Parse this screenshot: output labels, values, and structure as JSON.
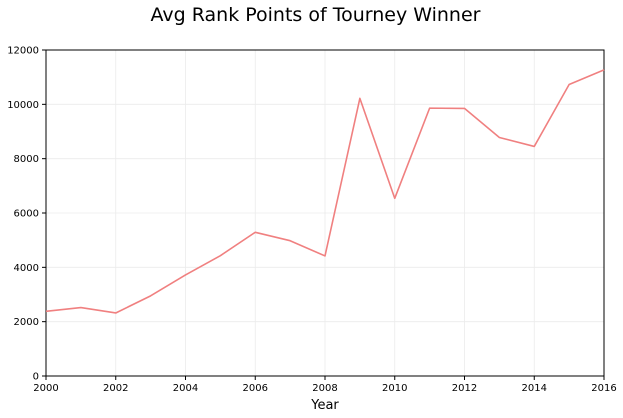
{
  "chart_data": {
    "type": "line",
    "title": "Avg Rank Points of Tourney Winner",
    "xlabel": "Year",
    "ylabel": "",
    "xlim": [
      2000,
      2016
    ],
    "ylim": [
      0,
      12000
    ],
    "x_ticks": [
      2000,
      2002,
      2004,
      2006,
      2008,
      2010,
      2012,
      2014,
      2016
    ],
    "y_ticks": [
      0,
      2000,
      4000,
      6000,
      8000,
      10000,
      12000
    ],
    "grid": true,
    "legend": "none",
    "series": [
      {
        "color": "#f08080",
        "x": [
          2000,
          2001,
          2002,
          2003,
          2004,
          2005,
          2006,
          2007,
          2008,
          2009,
          2010,
          2011,
          2012,
          2013,
          2014,
          2015,
          2016
        ],
        "values": [
          2380,
          2520,
          2320,
          2950,
          3720,
          4430,
          5290,
          4980,
          4420,
          10220,
          6540,
          9860,
          9850,
          8780,
          8450,
          10730,
          11270
        ]
      }
    ]
  }
}
